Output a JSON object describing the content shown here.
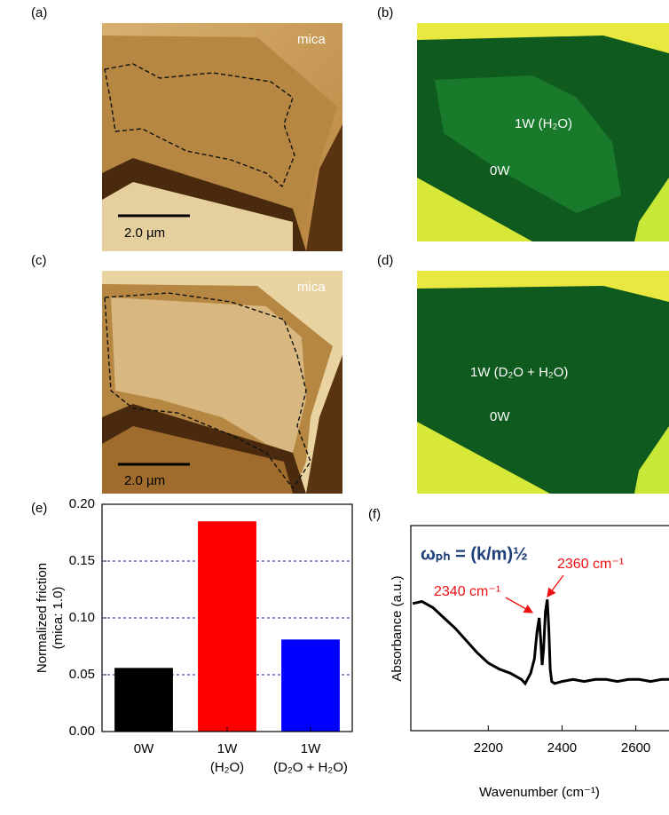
{
  "panels": [
    {
      "label": "(a)",
      "texts": [
        "mica",
        "2.0 µm"
      ]
    },
    {
      "label": "(b)",
      "texts": [
        "1W (H₂O)",
        "0W"
      ]
    },
    {
      "label": "(c)",
      "texts": [
        "mica",
        "2.0 µm"
      ]
    },
    {
      "label": "(d)",
      "texts": [
        "1W (D₂O + H₂O)",
        "0W"
      ]
    }
  ],
  "chart_data": [
    {
      "type": "bar",
      "panel_label": "(e)",
      "y_label": [
        "Normalized friction",
        "(mica: 1.0)"
      ],
      "categories": [
        [
          "0W"
        ],
        [
          "1W",
          "(H₂O)"
        ],
        [
          "1W",
          "(D₂O + H₂O)"
        ]
      ],
      "values": [
        0.056,
        0.185,
        0.081
      ],
      "colors": [
        "#000000",
        "#ff0000",
        "#0000ff"
      ],
      "ylim": [
        0,
        0.2
      ],
      "yticks": [
        {
          "value": 0,
          "label": "0.00"
        },
        {
          "value": 0.05,
          "label": "0.05"
        },
        {
          "value": 0.1,
          "label": "0.10"
        },
        {
          "value": 0.15,
          "label": "0.15"
        },
        {
          "value": 0.2,
          "label": "0.20"
        }
      ],
      "grid": true,
      "grid_color": "#1a1aa0"
    },
    {
      "type": "line",
      "panel_label": "(f)",
      "x_label": "Wavenumber (cm⁻¹)",
      "y_label": "Absorbance (a.u.)",
      "annotations": [
        "ωₚₕ = (k/m)½",
        "2360 cm⁻¹",
        "2340 cm⁻¹"
      ],
      "x": [
        1995,
        2020,
        2050,
        2080,
        2110,
        2140,
        2170,
        2200,
        2230,
        2260,
        2290,
        2300,
        2315,
        2325,
        2332,
        2338,
        2342,
        2346,
        2350,
        2355,
        2360,
        2364,
        2368,
        2372,
        2380,
        2400,
        2430,
        2460,
        2490,
        2520,
        2550,
        2580,
        2610,
        2640,
        2670,
        2690
      ],
      "values": [
        0.62,
        0.63,
        0.6,
        0.55,
        0.5,
        0.44,
        0.38,
        0.33,
        0.3,
        0.28,
        0.25,
        0.23,
        0.28,
        0.35,
        0.48,
        0.55,
        0.45,
        0.32,
        0.4,
        0.58,
        0.64,
        0.5,
        0.3,
        0.24,
        0.23,
        0.24,
        0.25,
        0.24,
        0.25,
        0.25,
        0.24,
        0.25,
        0.25,
        0.24,
        0.25,
        0.25
      ],
      "color": "#000000",
      "xlim": [
        1990,
        2690
      ],
      "ylim": [
        0,
        1
      ],
      "xticks": [
        2200,
        2400,
        2600
      ]
    }
  ]
}
